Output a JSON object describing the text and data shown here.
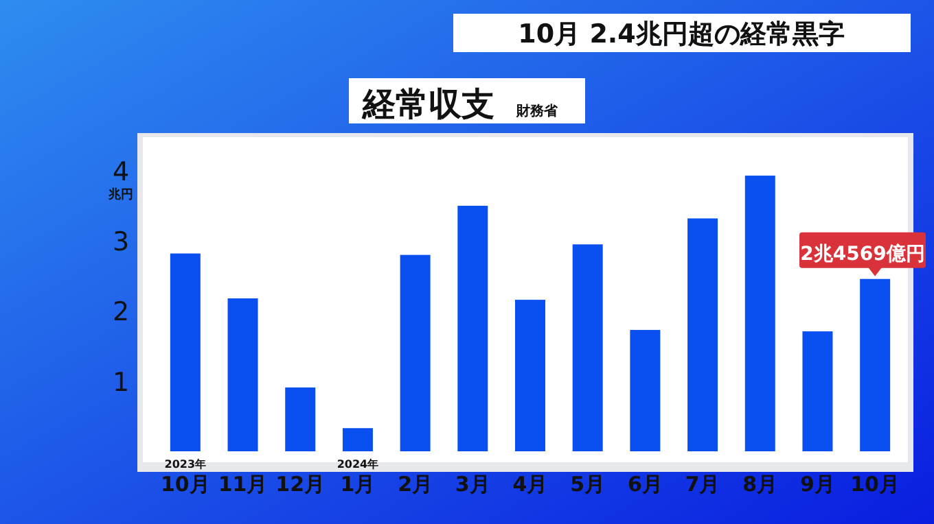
{
  "chart_data": {
    "type": "bar",
    "title": "10月 2.4兆円超の経常黒字",
    "subtitle": "経常収支",
    "annotations": [
      "財務省"
    ],
    "ylabel": "兆円",
    "categories": [
      "2023年\n10月",
      "11月",
      "12月",
      "2024年\n1月",
      "2月",
      "3月",
      "4月",
      "5月",
      "6月",
      "7月",
      "8月",
      "9月",
      "10月"
    ],
    "values": [
      2.82,
      2.18,
      0.91,
      0.33,
      2.8,
      3.5,
      2.16,
      2.95,
      1.73,
      3.32,
      3.93,
      1.71,
      2.4569
    ],
    "value_labels": [
      null,
      null,
      null,
      null,
      null,
      null,
      null,
      null,
      null,
      null,
      null,
      null,
      "2兆4569億円"
    ],
    "color": "#0a4ff0",
    "ylim": [
      0,
      4.4
    ],
    "yticks": [
      1,
      2,
      3,
      4
    ],
    "grid": false
  }
}
